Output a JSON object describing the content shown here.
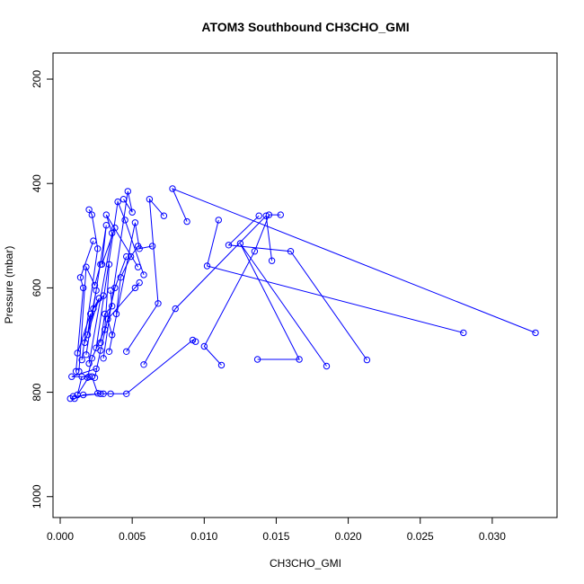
{
  "chart_data": {
    "type": "line",
    "title": "ATOM3 Southbound CH3CHO_GMI",
    "xlabel": "CH3CHO_GMI",
    "ylabel": "Pressure (mbar)",
    "xlim": [
      -0.0005,
      0.0345
    ],
    "ylim": [
      1040,
      150
    ],
    "y_reversed": true,
    "x_ticks": [
      "0.000",
      "0.005",
      "0.010",
      "0.015",
      "0.020",
      "0.025",
      "0.030"
    ],
    "y_ticks": [
      "200",
      "400",
      "600",
      "800",
      "1000"
    ],
    "grid": false,
    "color": "#0000ff",
    "series": [
      {
        "x": [
          0.0007,
          0.001,
          0.0016,
          0.0028,
          0.0009
        ],
        "y": [
          812,
          812,
          805,
          803,
          808
        ]
      },
      {
        "x": [
          0.0015,
          0.0012,
          0.002,
          0.0008,
          0.0025
        ],
        "y": [
          770,
          805,
          770,
          770,
          755
        ]
      },
      {
        "x": [
          0.0022,
          0.0026,
          0.003,
          0.0035,
          0.0046,
          0.0092,
          0.0094
        ],
        "y": [
          770,
          802,
          803,
          803,
          803,
          700,
          703
        ]
      },
      {
        "x": [
          0.0112,
          0.01,
          0.0135,
          0.0145,
          0.0153
        ],
        "y": [
          748,
          712,
          530,
          460,
          460
        ]
      },
      {
        "x": [
          0.0137,
          0.0166,
          0.0125,
          0.0185
        ],
        "y": [
          737,
          737,
          515,
          750
        ]
      },
      {
        "x": [
          0.0213,
          0.016,
          0.0117,
          0.0138
        ],
        "y": [
          738,
          530,
          518,
          462
        ]
      },
      {
        "x": [
          0.033,
          0.0078,
          0.0088
        ],
        "y": [
          686,
          410,
          473
        ]
      },
      {
        "x": [
          0.028,
          0.0102,
          0.011
        ],
        "y": [
          686,
          558,
          470
        ]
      },
      {
        "x": [
          0.0058,
          0.008,
          0.0143,
          0.0147
        ],
        "y": [
          747,
          640,
          462,
          548
        ]
      },
      {
        "x": [
          0.0046,
          0.0068,
          0.0062,
          0.0072
        ],
        "y": [
          722,
          630,
          430,
          462
        ]
      },
      {
        "x": [
          0.0034,
          0.0052,
          0.0055,
          0.0064
        ],
        "y": [
          722,
          475,
          525,
          520
        ]
      },
      {
        "x": [
          0.003,
          0.0047,
          0.005,
          0.0044
        ],
        "y": [
          735,
          415,
          455,
          430
        ]
      },
      {
        "x": [
          0.0025,
          0.004,
          0.0045,
          0.0058
        ],
        "y": [
          715,
          435,
          470,
          575
        ]
      },
      {
        "x": [
          0.002,
          0.0036,
          0.0032,
          0.0054
        ],
        "y": [
          745,
          495,
          460,
          560
        ]
      },
      {
        "x": [
          0.0018,
          0.0032,
          0.0029,
          0.0038
        ],
        "y": [
          728,
          480,
          555,
          485
        ]
      },
      {
        "x": [
          0.0015,
          0.0026,
          0.0022,
          0.002
        ],
        "y": [
          738,
          525,
          460,
          450
        ]
      },
      {
        "x": [
          0.0013,
          0.0018,
          0.0024,
          0.0028
        ],
        "y": [
          760,
          560,
          595,
          555
        ]
      },
      {
        "x": [
          0.0011,
          0.0016,
          0.0014,
          0.0023
        ],
        "y": [
          760,
          600,
          580,
          510
        ]
      },
      {
        "x": [
          0.0012,
          0.0021,
          0.0019,
          0.0025
        ],
        "y": [
          725,
          650,
          690,
          605
        ]
      },
      {
        "x": [
          0.0017,
          0.0027,
          0.0023,
          0.003
        ],
        "y": [
          705,
          620,
          640,
          615
        ]
      },
      {
        "x": [
          0.0028,
          0.0031,
          0.0036,
          0.0035
        ],
        "y": [
          705,
          650,
          635,
          605
        ]
      },
      {
        "x": [
          0.0036,
          0.0033,
          0.0055,
          0.0052
        ],
        "y": [
          690,
          660,
          590,
          600
        ]
      },
      {
        "x": [
          0.0039,
          0.0042,
          0.0049,
          0.0054
        ],
        "y": [
          650,
          580,
          540,
          520
        ]
      },
      {
        "x": [
          0.0024,
          0.0028,
          0.0038,
          0.0046
        ],
        "y": [
          772,
          720,
          600,
          540
        ]
      },
      {
        "x": [
          0.0019,
          0.0022,
          0.0031,
          0.0034
        ],
        "y": [
          772,
          735,
          680,
          555
        ]
      }
    ]
  }
}
